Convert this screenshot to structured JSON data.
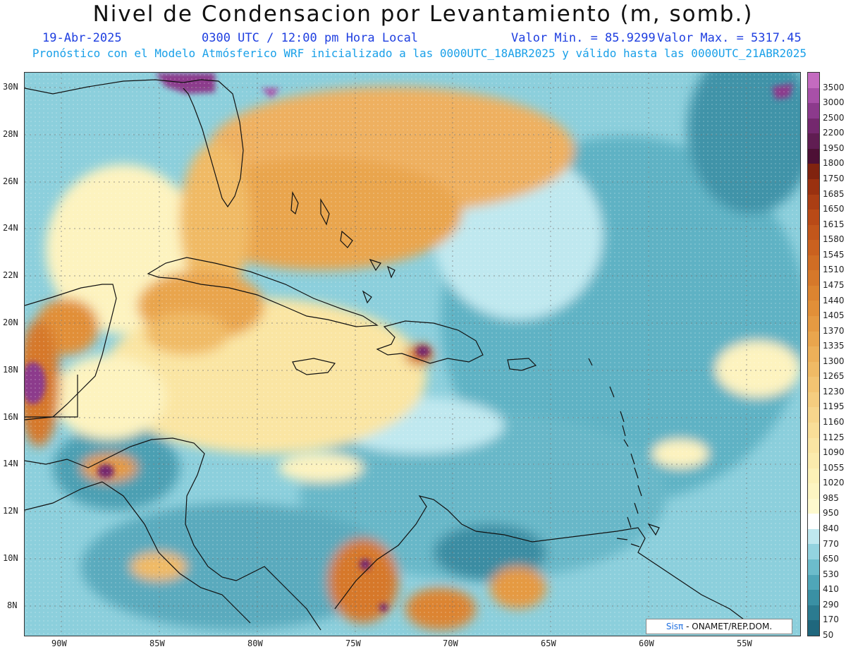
{
  "title": "Nivel de Condensacion por Levantamiento (m, somb.)",
  "header": {
    "date": "19-Abr-2025",
    "time": "0300 UTC / 12:00 pm Hora Local",
    "min_label": "Valor Min. = 85.9299",
    "max_label": "Valor Max. = 5317.45",
    "model_line": "Pronóstico con el Modelo Atmósferico WRF inicializado a las 0000UTC_18ABR2025 y válido hasta las  0000UTC_21ABR2025"
  },
  "map": {
    "lon_labels": [
      "90W",
      "85W",
      "80W",
      "75W",
      "70W",
      "65W",
      "60W",
      "55W"
    ],
    "lat_labels": [
      "30N",
      "28N",
      "26N",
      "24N",
      "22N",
      "20N",
      "18N",
      "16N",
      "14N",
      "12N",
      "10N",
      "8N"
    ],
    "grid": true
  },
  "colorbar": {
    "labels": [
      "3500",
      "3000",
      "2500",
      "2200",
      "1950",
      "1800",
      "1750",
      "1685",
      "1650",
      "1615",
      "1580",
      "1545",
      "1510",
      "1475",
      "1440",
      "1405",
      "1370",
      "1335",
      "1300",
      "1265",
      "1230",
      "1195",
      "1160",
      "1125",
      "1090",
      "1055",
      "1020",
      "985",
      "950",
      "840",
      "770",
      "650",
      "530",
      "410",
      "290",
      "170",
      "50"
    ],
    "colors": [
      "#c46bc0",
      "#a850a8",
      "#8c3a8c",
      "#74286e",
      "#601d52",
      "#4d1035",
      "#80230f",
      "#9a3110",
      "#ab3e14",
      "#b94a17",
      "#c2561b",
      "#ca611f",
      "#d06d24",
      "#d6782a",
      "#dc8430",
      "#e18f38",
      "#e59a42",
      "#e9a54d",
      "#edb059",
      "#f0ba65",
      "#f3c472",
      "#f5cd7f",
      "#f7d68c",
      "#f9de98",
      "#fae5a3",
      "#fbebad",
      "#fcf1b7",
      "#fdf5c2",
      "#fef9ce",
      "#ffffff",
      "#bfe8ef",
      "#93d3df",
      "#6cbccb",
      "#4fa6b8",
      "#3a90a4",
      "#2b7b90",
      "#1f677d"
    ]
  },
  "credit": {
    "sis": "Sis",
    "pi": "π",
    "rest": "- ONAMET/REP.DOM."
  }
}
